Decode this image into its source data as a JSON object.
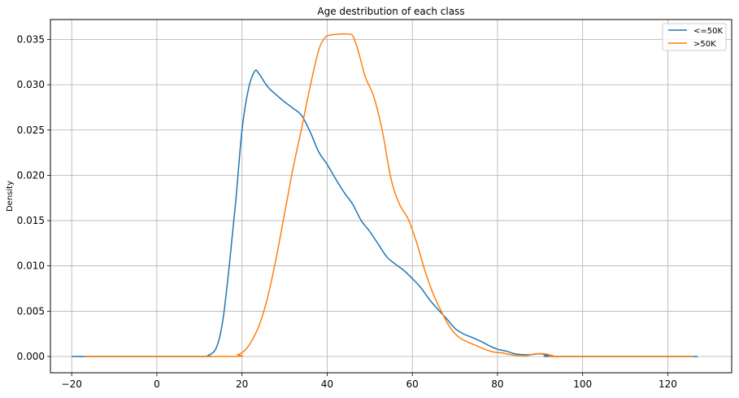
{
  "chart_data": {
    "type": "line",
    "title": "Age destribution of each class",
    "xlabel": "",
    "ylabel": "Density",
    "xlim": [
      -25,
      135
    ],
    "ylim": [
      -0.0018,
      0.0372
    ],
    "xticks": [
      -20,
      0,
      20,
      40,
      60,
      80,
      100,
      120
    ],
    "xtick_labels": [
      "−20",
      "0",
      "20",
      "40",
      "60",
      "80",
      "100",
      "120"
    ],
    "yticks": [
      0.0,
      0.005,
      0.01,
      0.015,
      0.02,
      0.025,
      0.03,
      0.035
    ],
    "ytick_labels": [
      "0.000",
      "0.005",
      "0.010",
      "0.015",
      "0.020",
      "0.025",
      "0.030",
      "0.035"
    ],
    "grid": true,
    "legend_position": "top-right",
    "series": [
      {
        "name": "<=50K",
        "color": "#1f77b4",
        "points": [
          [
            -20,
            0
          ],
          [
            10,
            0
          ],
          [
            12,
            0.0001
          ],
          [
            14,
            0.001
          ],
          [
            15.5,
            0.004
          ],
          [
            17,
            0.01
          ],
          [
            18.5,
            0.017
          ],
          [
            20,
            0.025
          ],
          [
            21.5,
            0.0295
          ],
          [
            23,
            0.0315
          ],
          [
            24,
            0.0312
          ],
          [
            26,
            0.0298
          ],
          [
            28,
            0.0289
          ],
          [
            30,
            0.0281
          ],
          [
            32,
            0.0274
          ],
          [
            34,
            0.0266
          ],
          [
            36,
            0.0248
          ],
          [
            38,
            0.0226
          ],
          [
            40,
            0.0212
          ],
          [
            42,
            0.0196
          ],
          [
            44,
            0.0181
          ],
          [
            46,
            0.0168
          ],
          [
            48,
            0.015
          ],
          [
            50,
            0.0138
          ],
          [
            52,
            0.0124
          ],
          [
            54,
            0.011
          ],
          [
            56,
            0.0102
          ],
          [
            58,
            0.0095
          ],
          [
            60,
            0.0086
          ],
          [
            62,
            0.0076
          ],
          [
            64,
            0.0063
          ],
          [
            66,
            0.0052
          ],
          [
            68,
            0.0042
          ],
          [
            70,
            0.0031
          ],
          [
            72,
            0.0025
          ],
          [
            74,
            0.0021
          ],
          [
            76,
            0.0017
          ],
          [
            78,
            0.0012
          ],
          [
            80,
            0.0008
          ],
          [
            82,
            0.0006
          ],
          [
            84,
            0.0003
          ],
          [
            86,
            0.0002
          ],
          [
            88,
            0.0002
          ],
          [
            90,
            0.0003
          ],
          [
            92,
            0.0001
          ],
          [
            94,
            0
          ],
          [
            127,
            0
          ]
        ]
      },
      {
        "name": ">50K",
        "color": "#ff7f0e",
        "points": [
          [
            -17,
            0
          ],
          [
            17,
            0
          ],
          [
            19,
            0.0002
          ],
          [
            20.5,
            0.0006
          ],
          [
            22,
            0.0015
          ],
          [
            24,
            0.0034
          ],
          [
            26,
            0.0065
          ],
          [
            28,
            0.0108
          ],
          [
            30,
            0.0158
          ],
          [
            32,
            0.0208
          ],
          [
            34,
            0.0252
          ],
          [
            36,
            0.0298
          ],
          [
            38,
            0.0338
          ],
          [
            39.5,
            0.0352
          ],
          [
            41,
            0.0355
          ],
          [
            43,
            0.0356
          ],
          [
            45,
            0.0356
          ],
          [
            46,
            0.0354
          ],
          [
            47,
            0.0342
          ],
          [
            48,
            0.0325
          ],
          [
            49,
            0.0308
          ],
          [
            51,
            0.0286
          ],
          [
            53,
            0.0248
          ],
          [
            55,
            0.0196
          ],
          [
            57,
            0.0168
          ],
          [
            59,
            0.0152
          ],
          [
            61,
            0.0126
          ],
          [
            63,
            0.0094
          ],
          [
            65,
            0.0068
          ],
          [
            67,
            0.0048
          ],
          [
            69,
            0.0031
          ],
          [
            71,
            0.0021
          ],
          [
            73,
            0.0016
          ],
          [
            75,
            0.0012
          ],
          [
            77,
            0.0008
          ],
          [
            79,
            0.0005
          ],
          [
            81,
            0.0004
          ],
          [
            83,
            0.0002
          ],
          [
            85,
            0.0001
          ],
          [
            87,
            0.0001
          ],
          [
            89,
            0.0003
          ],
          [
            91,
            0.0003
          ],
          [
            93,
            0.0001
          ],
          [
            95,
            0
          ],
          [
            126,
            0
          ]
        ]
      }
    ]
  }
}
